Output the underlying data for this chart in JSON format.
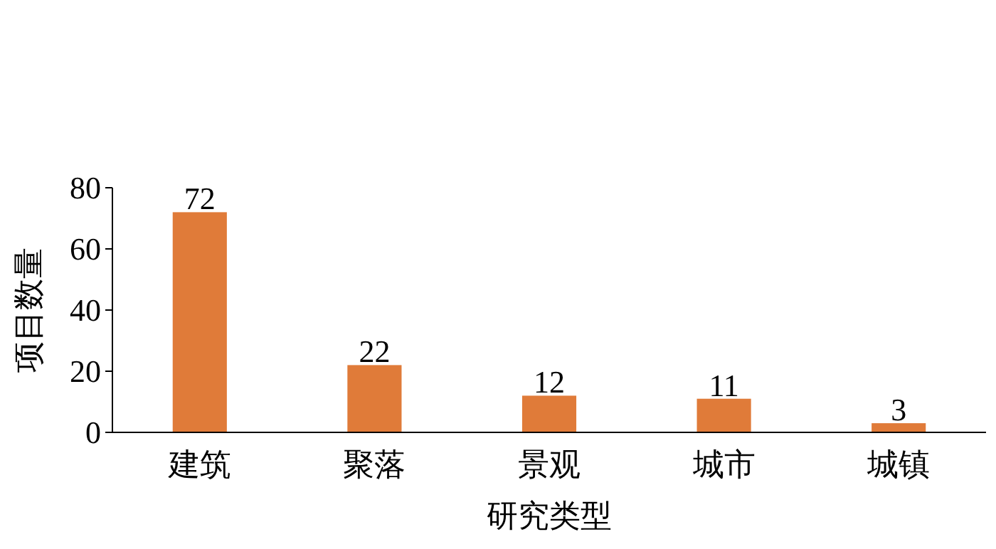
{
  "chart_data": {
    "type": "bar",
    "xlabel": "研究类型",
    "ylabel": "项目数量",
    "categories": [
      "建筑",
      "聚落",
      "景观",
      "城市",
      "城镇"
    ],
    "values": [
      72,
      22,
      12,
      11,
      3
    ],
    "color": "#e07b39",
    "ylim": [
      0,
      80
    ],
    "yticks": [
      0,
      20,
      40,
      60,
      80
    ],
    "data_labels": true
  }
}
